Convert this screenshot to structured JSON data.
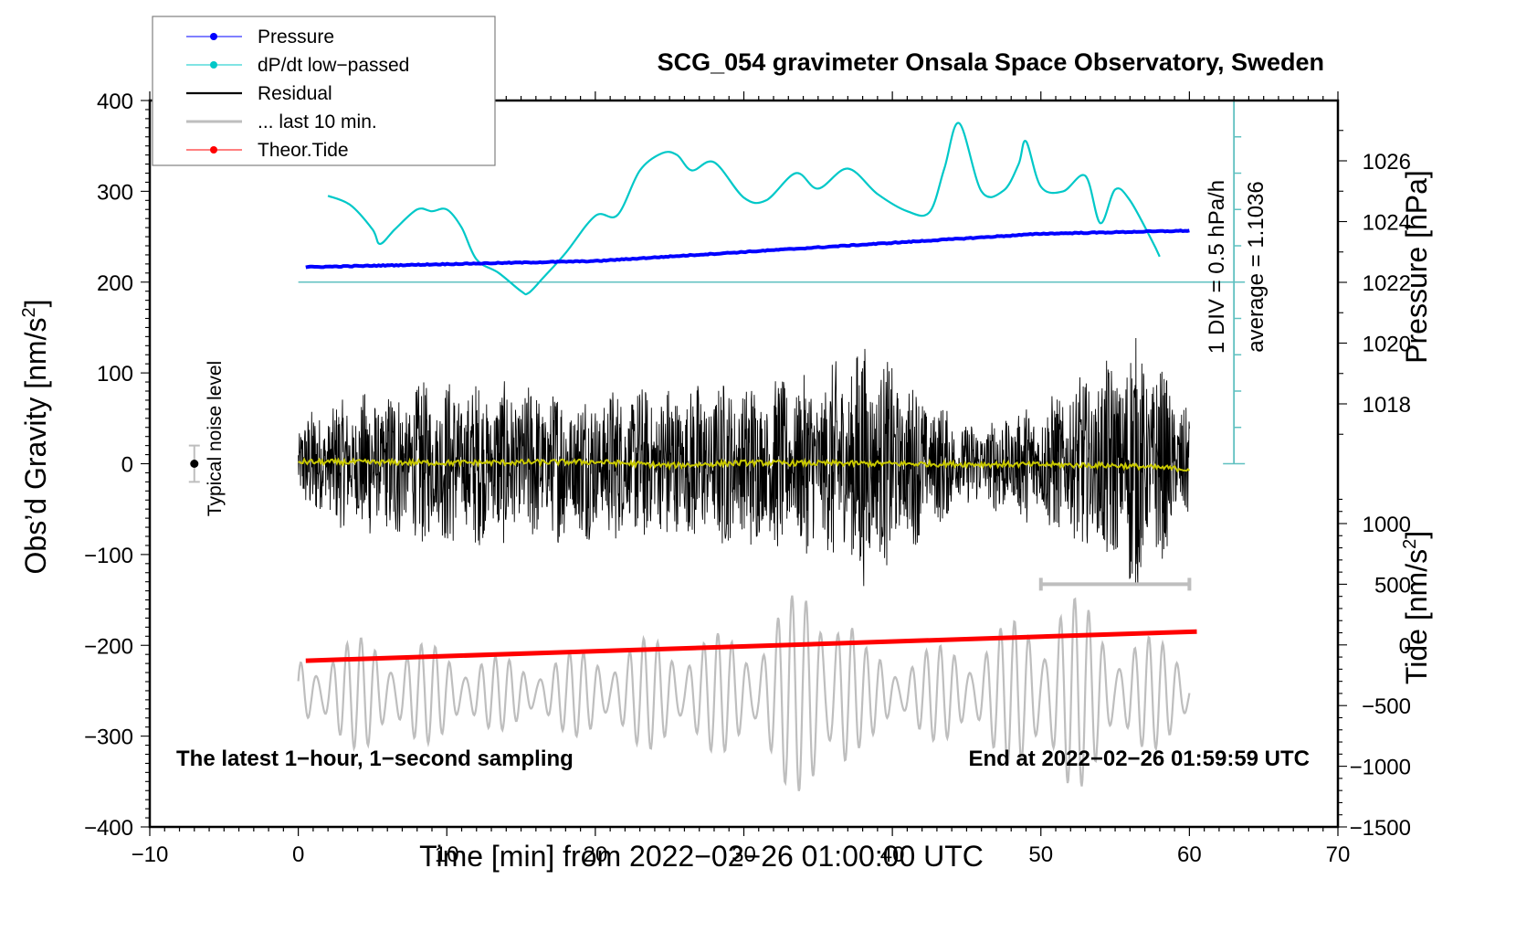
{
  "chart_data": {
    "type": "line",
    "title": "SCG_054 gravimeter Onsala Space Observatory, Sweden",
    "xlabel": "Time [min] from 2022−02−26 01:00:00 UTC",
    "ylabel_left": "Obs’d Gravity [nm/s²]",
    "ylabel_left_main": "Obs’d Gravity [nm/s",
    "ylabel_left_sup": "2",
    "ylabel_left_end": "]",
    "ylabel_right_top": "Pressure [hPa]",
    "ylabel_right_bottom": "Tide [nm/s²]",
    "ylabel_right_bottom_main": "Tide [nm/s",
    "ylabel_right_bottom_sup": "2",
    "ylabel_right_bottom_end": "]",
    "xlim": [
      -10,
      70
    ],
    "ylim_left": [
      -400,
      400
    ],
    "ylim_pressure": [
      1016,
      1028
    ],
    "ylim_tide": [
      -1500,
      1500
    ],
    "x_ticks": [
      -10,
      0,
      10,
      20,
      30,
      40,
      50,
      60,
      70
    ],
    "x_tick_labels": [
      "−10",
      "0",
      "10",
      "20",
      "30",
      "40",
      "50",
      "60",
      "70"
    ],
    "y_left_ticks": [
      400,
      300,
      200,
      100,
      0,
      -100,
      -200,
      -300,
      -400
    ],
    "y_left_tick_labels": [
      "400",
      "300",
      "200",
      "100",
      "0",
      "−100",
      "−200",
      "−300",
      "−400"
    ],
    "y_pressure_ticks": [
      1026,
      1024,
      1022,
      1020,
      1018
    ],
    "y_pressure_tick_labels": [
      "1026",
      "1024",
      "1022",
      "1020",
      "1018"
    ],
    "y_tide_ticks": [
      1000,
      500,
      0,
      -500,
      -1000,
      -1500
    ],
    "y_tide_tick_labels": [
      "1000",
      "500",
      "0",
      "−500",
      "−1000",
      "−1500"
    ],
    "grid": false,
    "legend_position": "top-left",
    "legend": [
      {
        "label": "Pressure",
        "color": "#0000ff",
        "marker": "dot"
      },
      {
        "label": "dP/dt low−passed",
        "color": "#00c8c8",
        "marker": "dot"
      },
      {
        "label": "Residual",
        "color": "#000000",
        "marker": "none"
      },
      {
        "label": "... last 10 min.",
        "color": "#bebebe",
        "marker": "none"
      },
      {
        "label": "Theor.Tide",
        "color": "#ff0000",
        "marker": "dot"
      }
    ],
    "series": [
      {
        "name": "Pressure",
        "axis": "pressure",
        "color": "#0000ff",
        "x": [
          0.5,
          10,
          20,
          30,
          40,
          50,
          60
        ],
        "y": [
          1022.5,
          1022.6,
          1022.7,
          1023.0,
          1023.3,
          1023.6,
          1023.7
        ]
      },
      {
        "name": "dP/dt low-passed",
        "axis": "dpdt_scale",
        "unit": "hPa/h per DIV",
        "color": "#00c8c8",
        "baseline_y_left": 200,
        "div_value": 0.5,
        "x": [
          2,
          3.5,
          5,
          5.5,
          6.5,
          8,
          9,
          10,
          11,
          12,
          13.5,
          15,
          15.5,
          16.5,
          18,
          20,
          21.5,
          23,
          24.5,
          25.5,
          26.5,
          28,
          30,
          31.5,
          33.5,
          35,
          37,
          39,
          41,
          42.5,
          43.5,
          44.5,
          46,
          47.5,
          48.5,
          49,
          50,
          51.5,
          53,
          54,
          55,
          56,
          57.5,
          58
        ],
        "y_left_units": [
          295,
          285,
          258,
          242,
          258,
          280,
          278,
          280,
          260,
          225,
          210,
          190,
          188,
          205,
          232,
          273,
          274,
          323,
          342,
          340,
          323,
          332,
          293,
          290,
          320,
          303,
          325,
          297,
          278,
          277,
          325,
          375,
          300,
          301,
          330,
          355,
          305,
          300,
          317,
          265,
          302,
          290,
          245,
          228
        ]
      },
      {
        "name": "Residual",
        "axis": "left",
        "color": "#000000",
        "x_range": [
          0,
          60
        ],
        "typical_amplitude": 70,
        "peak_amplitude": 160,
        "envelope_x": [
          0,
          5,
          10,
          15,
          20,
          25,
          30,
          35,
          38,
          40,
          45,
          50,
          55,
          56,
          58,
          60
        ],
        "envelope_amp": [
          55,
          85,
          95,
          90,
          85,
          90,
          95,
          100,
          140,
          110,
          45,
          70,
          120,
          150,
          110,
          60
        ]
      },
      {
        "name": "Residual smoothed",
        "axis": "left",
        "color": "#c8c800",
        "x": [
          0,
          10,
          20,
          25,
          30,
          40,
          50,
          55,
          60
        ],
        "y": [
          2,
          1,
          2,
          -2,
          1,
          0,
          -1,
          -2,
          -6
        ]
      },
      {
        "name": "... last 10 min.",
        "axis": "tide",
        "color": "#bebebe",
        "x_range": [
          0,
          60
        ],
        "center": -400,
        "envelope_x": [
          0,
          5,
          10,
          15,
          20,
          25,
          30,
          34,
          35,
          36,
          38,
          40,
          45,
          50,
          51,
          55,
          60
        ],
        "envelope_amp": [
          300,
          450,
          350,
          250,
          350,
          450,
          450,
          800,
          1050,
          900,
          350,
          300,
          400,
          650,
          850,
          500,
          350
        ]
      },
      {
        "name": "Theor.Tide",
        "axis": "tide",
        "color": "#ff0000",
        "x": [
          0.5,
          60.5
        ],
        "y": [
          -130,
          110
        ]
      }
    ],
    "annotations": {
      "noise_level_label": "Typical noise level",
      "noise_level_x": -7,
      "noise_level_y": 0,
      "noise_level_err": 20,
      "dpdt_scale_label": "1 DIV = 0.5 hPa/h",
      "dpdt_average_label": "average = 1.1036",
      "last10_bar_x": [
        50,
        60
      ],
      "last10_bar_tide_y": 500,
      "note_left": "The latest 1−hour, 1−second sampling",
      "note_right": "End at 2022−02−26 01:59:59 UTC"
    }
  }
}
